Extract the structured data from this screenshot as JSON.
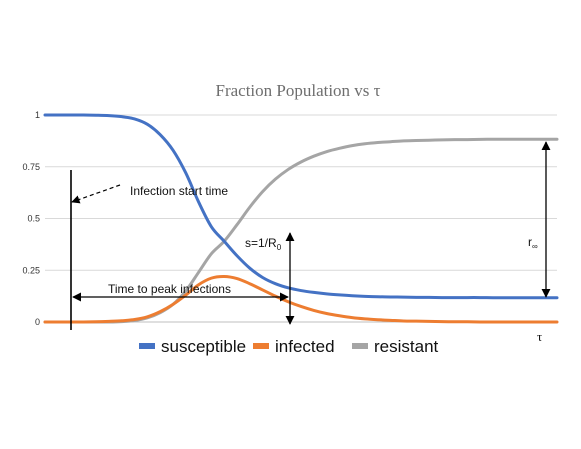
{
  "chart_data": {
    "type": "line",
    "title": "Fraction Population vs  τ",
    "xlabel": "τ",
    "ylabel": "",
    "ylim": [
      0,
      1
    ],
    "yticks": [
      "0",
      "0.25",
      "0.5",
      "0.75",
      "1"
    ],
    "grid": true,
    "legend_position": "bottom",
    "x": [
      0,
      0.5,
      1,
      1.5,
      2,
      2.5,
      3,
      3.5,
      4,
      4.5,
      5,
      5.5,
      6,
      6.5,
      7,
      7.5,
      8,
      8.5,
      9,
      9.5,
      10,
      10.5,
      11,
      11.5,
      12,
      12.5,
      13,
      13.5,
      14,
      14.5,
      15,
      15.5,
      16,
      16.5,
      17,
      17.5,
      18,
      18.5,
      19,
      19.5,
      20
    ],
    "series": [
      {
        "name": "susceptible",
        "color": "#4472C4",
        "values": [
          1.0,
          1.0,
          1.0,
          1.0,
          0.999,
          0.997,
          0.992,
          0.981,
          0.955,
          0.905,
          0.83,
          0.72,
          0.58,
          0.46,
          0.39,
          0.32,
          0.26,
          0.215,
          0.185,
          0.165,
          0.152,
          0.143,
          0.136,
          0.131,
          0.127,
          0.124,
          0.122,
          0.121,
          0.12,
          0.119,
          0.119,
          0.118,
          0.118,
          0.118,
          0.118,
          0.117,
          0.117,
          0.117,
          0.117,
          0.117,
          0.117
        ]
      },
      {
        "name": "infected",
        "color": "#ED7D31",
        "values": [
          0.0,
          0.0,
          0.0,
          0.0,
          0.001,
          0.003,
          0.006,
          0.012,
          0.025,
          0.05,
          0.085,
          0.13,
          0.18,
          0.212,
          0.22,
          0.21,
          0.185,
          0.155,
          0.125,
          0.098,
          0.075,
          0.056,
          0.041,
          0.03,
          0.021,
          0.015,
          0.011,
          0.008,
          0.005,
          0.004,
          0.003,
          0.002,
          0.001,
          0.001,
          0.0,
          0.0,
          0.0,
          0.0,
          0.0,
          0.0,
          0.0
        ]
      },
      {
        "name": "resistant",
        "color": "#A5A5A5",
        "values": [
          0.0,
          0.0,
          0.0,
          0.0,
          0.0,
          0.0,
          0.002,
          0.007,
          0.02,
          0.045,
          0.085,
          0.15,
          0.24,
          0.33,
          0.39,
          0.47,
          0.555,
          0.63,
          0.69,
          0.737,
          0.773,
          0.801,
          0.823,
          0.839,
          0.852,
          0.861,
          0.867,
          0.871,
          0.875,
          0.877,
          0.878,
          0.88,
          0.881,
          0.881,
          0.882,
          0.883,
          0.883,
          0.883,
          0.883,
          0.883,
          0.883
        ]
      }
    ],
    "annotations": {
      "infection_start": "Infection start time",
      "time_to_peak": "Time to peak infections",
      "s_main": "s=1/R",
      "s_sub": "0",
      "r_main": "r",
      "r_sub": "∞"
    }
  }
}
